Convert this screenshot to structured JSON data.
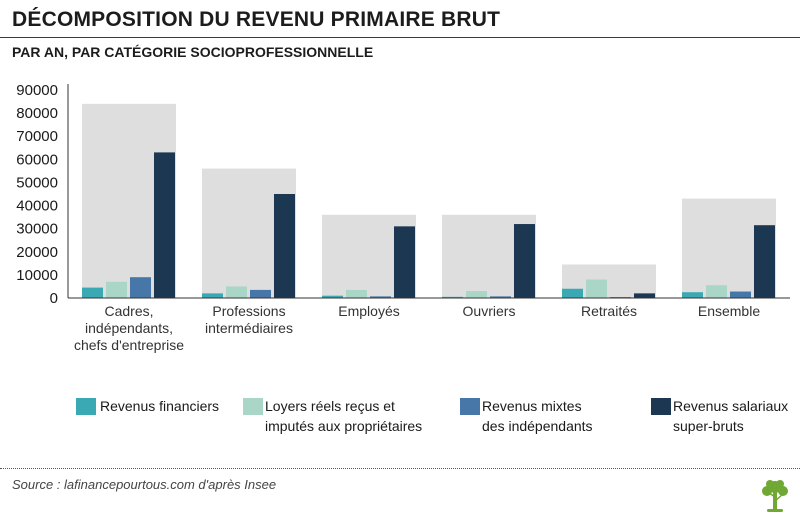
{
  "header": {
    "title": "DÉCOMPOSITION DU REVENU PRIMAIRE BRUT",
    "subtitle": "PAR AN, PAR CATÉGORIE SOCIOPROFESSIONNELLE"
  },
  "footer": {
    "source": "Source : lafinancepourtous.com d'après Insee"
  },
  "colors": {
    "background_bar": "#dedede",
    "series": [
      "#3aa9b3",
      "#a9d6c6",
      "#4677a8",
      "#1b3752"
    ]
  },
  "chart_data": {
    "type": "bar",
    "title": "DÉCOMPOSITION DU REVENU PRIMAIRE BRUT",
    "subtitle": "PAR AN, PAR CATÉGORIE SOCIOPROFESSIONNELLE",
    "xlabel": "",
    "ylabel": "",
    "ylim": [
      0,
      90000
    ],
    "yticks": [
      "0",
      "10000",
      "20000",
      "30000",
      "40000",
      "50000",
      "60000",
      "70000",
      "80000",
      "90000"
    ],
    "grid": false,
    "legend_position": "bottom",
    "categories": [
      "Cadres,\nindépendants,\nchefs d'entreprise",
      "Professions\nintermédiaires",
      "Employés",
      "Ouvriers",
      "Retraités",
      "Ensemble"
    ],
    "total_background": [
      84000,
      56000,
      36000,
      36000,
      14500,
      43000
    ],
    "series": [
      {
        "name": "Revenus financiers",
        "values": [
          4500,
          2000,
          1000,
          500,
          4000,
          2500
        ]
      },
      {
        "name": "Loyers réels reçus et\nimputés aux propriétaires",
        "values": [
          7000,
          5000,
          3500,
          3000,
          8000,
          5500
        ]
      },
      {
        "name": "Revenus mixtes\ndes indépendants",
        "values": [
          9000,
          3500,
          700,
          700,
          400,
          2800
        ]
      },
      {
        "name": "Revenus salariaux\nsuper-bruts",
        "values": [
          63000,
          45000,
          31000,
          32000,
          2000,
          31500
        ]
      }
    ]
  }
}
